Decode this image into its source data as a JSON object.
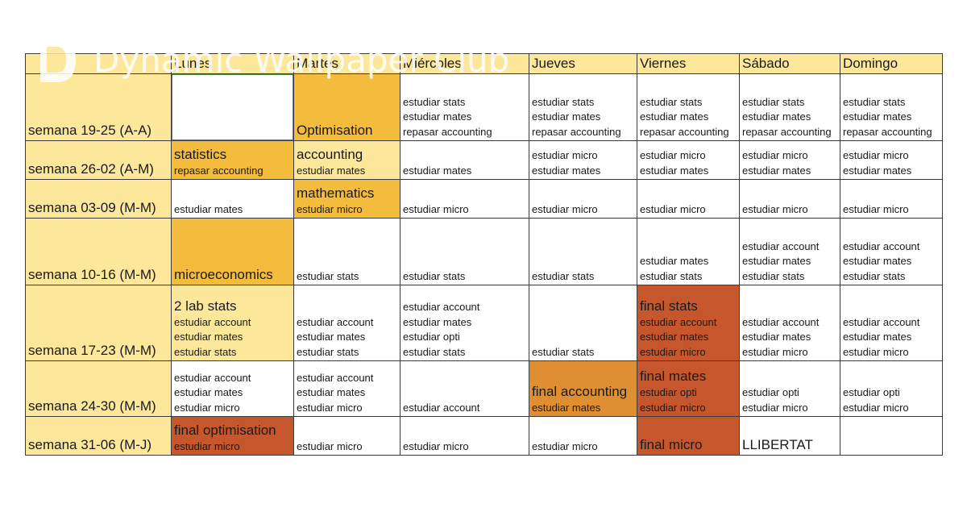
{
  "watermark": "Dynamic Wallpaper Club",
  "header": {
    "days": [
      "Lunes",
      "Martes",
      "Miércoles",
      "Jueves",
      "Viernes",
      "Sábado",
      "Domingo"
    ]
  },
  "weeks": [
    {
      "label": "semana 19-25 (A-A)",
      "cells": [
        {
          "color": "white",
          "big": "",
          "lines": [],
          "selected": true
        },
        {
          "color": "gold",
          "big": "Optimisation",
          "lines": []
        },
        {
          "color": "white",
          "big": "",
          "lines": [
            "estudiar stats",
            "estudiar mates",
            "repasar accounting"
          ]
        },
        {
          "color": "white",
          "big": "",
          "lines": [
            "estudiar stats",
            "estudiar mates",
            "repasar accounting"
          ]
        },
        {
          "color": "white",
          "big": "",
          "lines": [
            "estudiar stats",
            "estudiar mates",
            "repasar accounting"
          ]
        },
        {
          "color": "white",
          "big": "",
          "lines": [
            "estudiar stats",
            "estudiar mates",
            "repasar accounting"
          ]
        },
        {
          "color": "white",
          "big": "",
          "lines": [
            "estudiar stats",
            "estudiar mates",
            "repasar accounting"
          ]
        }
      ]
    },
    {
      "label": "semana 26-02 (A-M)",
      "cells": [
        {
          "color": "gold",
          "big": "statistics",
          "lines": [
            "repasar accounting"
          ]
        },
        {
          "color": "light",
          "big": "accounting",
          "lines": [
            "estudiar mates"
          ]
        },
        {
          "color": "white",
          "big": "",
          "lines": [
            "estudiar mates"
          ]
        },
        {
          "color": "white",
          "big": "",
          "lines": [
            "estudiar micro",
            "estudiar mates"
          ]
        },
        {
          "color": "white",
          "big": "",
          "lines": [
            "estudiar micro",
            "estudiar mates"
          ]
        },
        {
          "color": "white",
          "big": "",
          "lines": [
            "estudiar micro",
            "estudiar mates"
          ]
        },
        {
          "color": "white",
          "big": "",
          "lines": [
            "estudiar micro",
            "estudiar mates"
          ]
        }
      ]
    },
    {
      "label": "semana 03-09 (M-M)",
      "cells": [
        {
          "color": "white",
          "big": "",
          "lines": [
            "estudiar mates"
          ]
        },
        {
          "color": "gold",
          "big": "mathematics",
          "lines": [
            "estudiar micro"
          ]
        },
        {
          "color": "white",
          "big": "",
          "lines": [
            "estudiar micro"
          ]
        },
        {
          "color": "white",
          "big": "",
          "lines": [
            "estudiar micro"
          ]
        },
        {
          "color": "white",
          "big": "",
          "lines": [
            "estudiar micro"
          ]
        },
        {
          "color": "white",
          "big": "",
          "lines": [
            "estudiar micro"
          ]
        },
        {
          "color": "white",
          "big": "",
          "lines": [
            "estudiar micro"
          ]
        }
      ]
    },
    {
      "label": "semana 10-16 (M-M)",
      "cells": [
        {
          "color": "gold",
          "big": "microeconomics",
          "lines": []
        },
        {
          "color": "white",
          "big": "",
          "lines": [
            "estudiar stats"
          ]
        },
        {
          "color": "white",
          "big": "",
          "lines": [
            "estudiar stats"
          ]
        },
        {
          "color": "white",
          "big": "",
          "lines": [
            "estudiar stats"
          ]
        },
        {
          "color": "white",
          "big": "",
          "lines": [
            "estudiar mates",
            "estudiar stats"
          ]
        },
        {
          "color": "white",
          "big": "",
          "lines": [
            "estudiar account",
            "estudiar mates",
            "estudiar stats"
          ]
        },
        {
          "color": "white",
          "big": "",
          "lines": [
            "estudiar account",
            "estudiar mates",
            "estudiar stats"
          ]
        }
      ]
    },
    {
      "label": "semana 17-23 (M-M)",
      "cells": [
        {
          "color": "light",
          "big": "2 lab stats",
          "lines": [
            "estudiar account",
            "estudiar mates",
            "estudiar stats"
          ]
        },
        {
          "color": "white",
          "big": "",
          "lines": [
            "estudiar account",
            "estudiar mates",
            "estudiar stats"
          ]
        },
        {
          "color": "white",
          "big": "",
          "lines": [
            "estudiar account",
            "estudiar mates",
            "estudiar opti",
            "estudiar stats"
          ]
        },
        {
          "color": "white",
          "big": "",
          "lines": [
            "estudiar stats"
          ]
        },
        {
          "color": "red",
          "big": "final stats",
          "lines": [
            "estudiar account",
            "estudiar mates",
            "estudiar micro"
          ]
        },
        {
          "color": "white",
          "big": "",
          "lines": [
            "estudiar account",
            "estudiar mates",
            "estudiar micro"
          ]
        },
        {
          "color": "white",
          "big": "",
          "lines": [
            "estudiar account",
            "estudiar mates",
            "estudiar micro"
          ]
        }
      ]
    },
    {
      "label": "semana 24-30 (M-M)",
      "cells": [
        {
          "color": "white",
          "big": "",
          "lines": [
            "estudiar account",
            "estudiar mates",
            "estudiar micro"
          ]
        },
        {
          "color": "white",
          "big": "",
          "lines": [
            "estudiar account",
            "estudiar mates",
            "estudiar micro"
          ]
        },
        {
          "color": "white",
          "big": "",
          "lines": [
            "estudiar account"
          ]
        },
        {
          "color": "orange",
          "big": "final accounting",
          "lines": [
            "estudiar mates"
          ]
        },
        {
          "color": "red",
          "big": "final mates",
          "lines": [
            "estudiar opti",
            "estudiar micro"
          ]
        },
        {
          "color": "white",
          "big": "",
          "lines": [
            "estudiar opti",
            "estudiar micro"
          ]
        },
        {
          "color": "white",
          "big": "",
          "lines": [
            "estudiar opti",
            "estudiar micro"
          ]
        }
      ]
    },
    {
      "label": "semana 31-06 (M-J)",
      "cells": [
        {
          "color": "red",
          "big": "final optimisation",
          "lines": [
            "estudiar micro"
          ]
        },
        {
          "color": "white",
          "big": "",
          "lines": [
            "estudiar micro"
          ]
        },
        {
          "color": "white",
          "big": "",
          "lines": [
            "estudiar micro"
          ]
        },
        {
          "color": "white",
          "big": "",
          "lines": [
            "estudiar micro"
          ]
        },
        {
          "color": "red",
          "big": "final micro",
          "lines": []
        },
        {
          "color": "white",
          "big": "LLIBERTAT",
          "lines": []
        },
        {
          "color": "white",
          "big": "",
          "lines": []
        }
      ]
    }
  ],
  "colors": {
    "light": "#fde79a",
    "gold": "#f4bc3c",
    "orange": "#df8f32",
    "red": "#c6572c",
    "white": "#ffffff"
  }
}
